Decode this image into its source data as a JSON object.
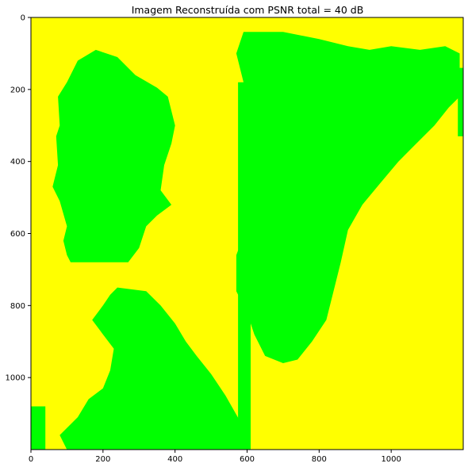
{
  "chart_data": {
    "type": "heatmap",
    "title": "Imagem Reconstruída com PSNR total = 40 dB",
    "xlabel": "",
    "ylabel": "",
    "xlim": [
      0,
      1200
    ],
    "ylim": [
      1200,
      0
    ],
    "x_ticks": [
      0,
      200,
      400,
      600,
      800,
      1000
    ],
    "y_ticks": [
      0,
      200,
      400,
      600,
      800,
      1000
    ],
    "grid": false,
    "legend": "none",
    "colors": {
      "background": "#ffff00",
      "foreground": "#00ff00",
      "axis": "#000000"
    },
    "regions": [
      {
        "name": "head-left",
        "points": [
          [
            100,
            180
          ],
          [
            130,
            120
          ],
          [
            180,
            90
          ],
          [
            240,
            110
          ],
          [
            290,
            160
          ],
          [
            350,
            195
          ],
          [
            380,
            220
          ],
          [
            400,
            300
          ],
          [
            390,
            350
          ],
          [
            370,
            410
          ],
          [
            360,
            480
          ],
          [
            390,
            520
          ],
          [
            350,
            550
          ],
          [
            320,
            580
          ],
          [
            300,
            640
          ],
          [
            270,
            680
          ],
          [
            200,
            680
          ],
          [
            110,
            680
          ],
          [
            100,
            660
          ],
          [
            90,
            620
          ],
          [
            100,
            580
          ],
          [
            80,
            510
          ],
          [
            60,
            470
          ],
          [
            75,
            410
          ],
          [
            70,
            330
          ],
          [
            80,
            300
          ],
          [
            75,
            220
          ]
        ]
      },
      {
        "name": "blob-right",
        "points": [
          [
            590,
            40
          ],
          [
            700,
            40
          ],
          [
            800,
            60
          ],
          [
            880,
            80
          ],
          [
            940,
            90
          ],
          [
            1000,
            80
          ],
          [
            1080,
            90
          ],
          [
            1150,
            80
          ],
          [
            1190,
            100
          ],
          [
            1190,
            220
          ],
          [
            1160,
            250
          ],
          [
            1120,
            300
          ],
          [
            1060,
            360
          ],
          [
            1020,
            400
          ],
          [
            970,
            460
          ],
          [
            920,
            520
          ],
          [
            880,
            590
          ],
          [
            860,
            680
          ],
          [
            840,
            760
          ],
          [
            820,
            840
          ],
          [
            780,
            900
          ],
          [
            740,
            950
          ],
          [
            700,
            960
          ],
          [
            650,
            940
          ],
          [
            620,
            880
          ],
          [
            600,
            820
          ],
          [
            570,
            760
          ],
          [
            570,
            660
          ],
          [
            600,
            580
          ],
          [
            590,
            500
          ],
          [
            600,
            420
          ],
          [
            580,
            340
          ],
          [
            600,
            260
          ],
          [
            590,
            180
          ],
          [
            570,
            100
          ]
        ]
      },
      {
        "name": "figure-bottom",
        "points": [
          [
            240,
            750
          ],
          [
            320,
            760
          ],
          [
            360,
            800
          ],
          [
            400,
            850
          ],
          [
            430,
            900
          ],
          [
            460,
            940
          ],
          [
            500,
            990
          ],
          [
            540,
            1050
          ],
          [
            580,
            1120
          ],
          [
            600,
            1200
          ],
          [
            100,
            1200
          ],
          [
            80,
            1160
          ],
          [
            130,
            1110
          ],
          [
            160,
            1060
          ],
          [
            200,
            1030
          ],
          [
            220,
            980
          ],
          [
            230,
            920
          ],
          [
            200,
            880
          ],
          [
            170,
            840
          ],
          [
            200,
            800
          ],
          [
            220,
            770
          ]
        ]
      },
      {
        "name": "strip-mid",
        "points": [
          [
            575,
            180
          ],
          [
            610,
            180
          ],
          [
            610,
            1200
          ],
          [
            575,
            1200
          ]
        ]
      },
      {
        "name": "left-edge-strip",
        "points": [
          [
            0,
            1080
          ],
          [
            40,
            1080
          ],
          [
            40,
            1200
          ],
          [
            0,
            1200
          ]
        ]
      },
      {
        "name": "right-notch",
        "points": [
          [
            1185,
            140
          ],
          [
            1200,
            140
          ],
          [
            1200,
            330
          ],
          [
            1185,
            330
          ]
        ]
      }
    ]
  }
}
